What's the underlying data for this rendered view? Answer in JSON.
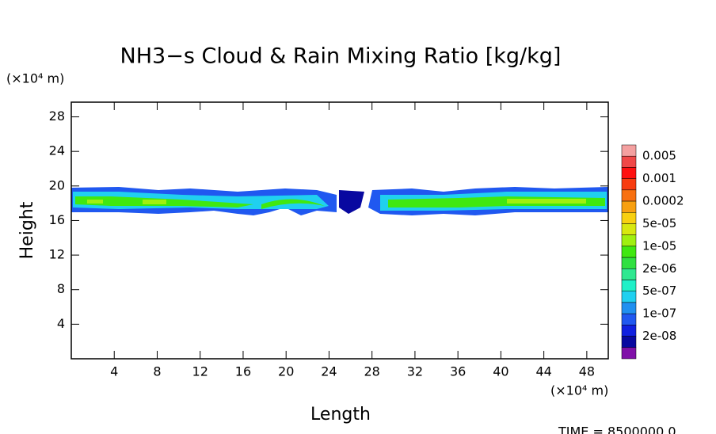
{
  "chart_data": {
    "type": "contour",
    "title": "NH3−s Cloud & Rain Mixing Ratio [kg/kg]",
    "x_label": "Length",
    "y_label": "Height",
    "x_unit": "(×10⁴ m)",
    "y_unit": "(×10⁴ m)",
    "annotation": "TIME = 8500000.0",
    "xlim": [
      0,
      50
    ],
    "ylim": [
      0,
      29.7
    ],
    "xticks": [
      4,
      8,
      12,
      16,
      20,
      24,
      28,
      32,
      36,
      40,
      44,
      48
    ],
    "yticks": [
      4,
      8,
      12,
      16,
      20,
      24,
      28
    ],
    "colorbar": {
      "colors": [
        "#f4a0a0",
        "#f04848",
        "#ff1010",
        "#f83c10",
        "#f87010",
        "#f8a010",
        "#f8d010",
        "#d8e810",
        "#a0f010",
        "#40e810",
        "#30e040",
        "#30e890",
        "#20f0c8",
        "#20d0f0",
        "#2090f0",
        "#2058f0",
        "#1020e0",
        "#0808a0",
        "#8010a8"
      ],
      "labels": [
        "0.005",
        "0.001",
        "0.0002",
        "5e-05",
        "1e-05",
        "2e-06",
        "5e-07",
        "1e-07",
        "2e-08"
      ]
    }
  }
}
